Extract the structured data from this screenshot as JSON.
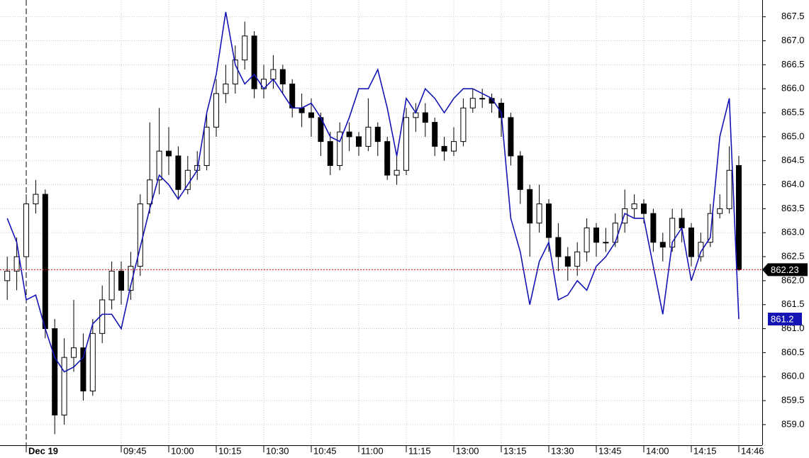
{
  "chart_data": {
    "type": "candlestick",
    "categories": [
      null,
      null,
      "Dec 19",
      null,
      null,
      null,
      null,
      null,
      null,
      null,
      null,
      null,
      "09:45",
      null,
      null,
      null,
      null,
      "10:00",
      null,
      null,
      null,
      null,
      "10:15",
      null,
      null,
      null,
      null,
      "10:30",
      null,
      null,
      null,
      null,
      "10:45",
      null,
      null,
      null,
      null,
      "11:00",
      null,
      null,
      null,
      null,
      "11:15",
      null,
      null,
      null,
      null,
      "13:00",
      null,
      null,
      null,
      null,
      "13:15",
      null,
      null,
      null,
      null,
      "13:30",
      null,
      null,
      null,
      null,
      "13:45",
      null,
      null,
      null,
      null,
      "14:00",
      null,
      null,
      null,
      null,
      "14:15",
      null,
      null,
      null,
      null,
      "14:46"
    ],
    "ohlc": {
      "open": [
        862.0,
        862.2,
        862.5,
        863.6,
        863.8,
        861.0,
        859.2,
        860.4,
        860.6,
        859.7,
        860.9,
        861.6,
        862.2,
        861.8,
        862.3,
        863.6,
        864.1,
        864.7,
        864.6,
        863.9,
        864.3,
        864.4,
        865.2,
        865.9,
        866.1,
        866.6,
        867.1,
        866.0,
        866.2,
        866.4,
        866.1,
        865.6,
        865.5,
        865.4,
        864.9,
        864.4,
        865.1,
        865.0,
        864.8,
        865.2,
        864.9,
        864.2,
        864.3,
        865.4,
        865.5,
        865.3,
        864.8,
        864.7,
        864.9,
        865.6,
        865.8,
        865.8,
        865.7,
        865.4,
        864.6,
        863.9,
        863.2,
        863.6,
        862.9,
        862.5,
        862.3,
        862.6,
        863.1,
        862.8,
        862.8,
        863.2,
        863.5,
        863.6,
        863.4,
        862.8,
        862.7,
        863.3,
        863.1,
        862.5,
        862.8,
        863.4,
        863.5,
        864.4
      ],
      "high": [
        862.5,
        862.9,
        863.8,
        864.1,
        863.9,
        861.2,
        860.8,
        861.6,
        860.9,
        861.2,
        861.9,
        862.4,
        862.4,
        862.6,
        863.8,
        865.3,
        865.6,
        865.2,
        864.8,
        864.6,
        864.7,
        865.5,
        866.2,
        866.5,
        866.9,
        867.4,
        867.2,
        866.5,
        866.7,
        866.5,
        866.2,
        865.9,
        865.8,
        865.5,
        865.1,
        865.3,
        865.3,
        865.1,
        865.8,
        865.3,
        865.0,
        864.6,
        865.6,
        865.7,
        865.7,
        865.4,
        865.0,
        865.2,
        865.8,
        866.0,
        866.0,
        865.9,
        865.8,
        865.5,
        864.7,
        864.0,
        864.0,
        863.7,
        863.2,
        862.7,
        862.8,
        863.3,
        863.2,
        863.1,
        863.4,
        863.9,
        863.8,
        863.7,
        863.5,
        863.0,
        863.5,
        863.5,
        863.2,
        863.0,
        863.6,
        863.8,
        864.8,
        864.6
      ],
      "low": [
        861.6,
        861.8,
        862.3,
        863.4,
        860.8,
        858.8,
        859.0,
        860.1,
        859.5,
        859.6,
        860.7,
        861.4,
        861.5,
        861.6,
        862.1,
        863.4,
        863.8,
        864.2,
        863.7,
        863.8,
        864.1,
        864.3,
        865.0,
        865.7,
        865.9,
        866.4,
        865.8,
        865.8,
        866.0,
        865.9,
        865.4,
        865.2,
        865.0,
        864.6,
        864.2,
        864.3,
        864.7,
        864.6,
        864.7,
        864.6,
        864.1,
        864.0,
        864.2,
        865.1,
        865.0,
        864.6,
        864.5,
        864.6,
        864.8,
        865.5,
        865.6,
        865.5,
        865.0,
        864.4,
        863.6,
        862.5,
        863.0,
        862.6,
        862.2,
        862.0,
        862.1,
        862.4,
        862.5,
        862.6,
        862.7,
        863.0,
        863.3,
        863.2,
        862.6,
        862.4,
        862.6,
        862.8,
        862.3,
        862.4,
        862.7,
        863.3,
        863.4,
        862.2
      ],
      "close": [
        862.2,
        862.5,
        863.6,
        863.8,
        861.0,
        859.2,
        860.4,
        860.6,
        859.7,
        860.9,
        861.6,
        862.2,
        861.8,
        862.3,
        863.6,
        864.1,
        864.7,
        864.6,
        863.9,
        864.3,
        864.4,
        865.2,
        865.9,
        866.1,
        866.6,
        867.1,
        866.0,
        866.2,
        866.4,
        866.1,
        865.6,
        865.5,
        865.4,
        864.9,
        864.4,
        865.1,
        865.0,
        864.8,
        865.2,
        864.9,
        864.2,
        864.3,
        865.4,
        865.5,
        865.3,
        864.8,
        864.7,
        864.9,
        865.6,
        865.8,
        865.8,
        865.7,
        865.4,
        864.6,
        863.9,
        863.2,
        863.6,
        862.9,
        862.5,
        862.3,
        862.6,
        863.1,
        862.8,
        862.8,
        863.2,
        863.5,
        863.6,
        863.4,
        862.8,
        862.7,
        863.3,
        863.1,
        862.5,
        862.8,
        863.4,
        863.5,
        864.3,
        862.23
      ],
      "color": "#000000"
    },
    "line": {
      "color": "#1414b4",
      "values": [
        863.3,
        862.8,
        861.6,
        861.7,
        861.0,
        860.4,
        860.1,
        860.2,
        860.4,
        861.1,
        861.3,
        861.3,
        861.0,
        861.9,
        862.7,
        863.5,
        864.2,
        864.0,
        863.7,
        864.0,
        864.3,
        865.5,
        866.3,
        867.6,
        866.5,
        866.1,
        866.3,
        866.0,
        866.2,
        865.9,
        865.6,
        865.6,
        865.7,
        865.4,
        865.0,
        864.9,
        865.4,
        866.0,
        866.0,
        866.4,
        865.6,
        864.6,
        865.8,
        865.5,
        866.0,
        865.8,
        865.5,
        865.8,
        866.0,
        866.0,
        865.9,
        865.8,
        865.5,
        863.3,
        862.6,
        861.5,
        862.4,
        862.8,
        861.6,
        861.7,
        862.0,
        861.8,
        862.3,
        862.5,
        862.8,
        863.4,
        863.3,
        863.3,
        862.3,
        861.3,
        862.8,
        863.1,
        862.0,
        862.6,
        862.9,
        865.0,
        865.8,
        861.2
      ]
    },
    "last_price_color": "#cc0000",
    "ylim": [
      858.57,
      867.85
    ],
    "yticks": [
      {
        "value": 859,
        "label": "859.0"
      },
      859.5,
      {
        "value": 860,
        "label": "860.0"
      },
      860.5,
      {
        "value": 861,
        "label": "861.0"
      },
      861.5,
      {
        "value": 862,
        "label": "862.0"
      },
      862.5,
      {
        "value": 863,
        "label": "863.0"
      },
      863.5,
      {
        "value": 864,
        "label": "864.0"
      },
      864.5,
      {
        "value": 865,
        "label": "865.0"
      },
      865.5,
      {
        "value": 866,
        "label": "866.0"
      },
      866.5,
      {
        "value": 867,
        "label": "867.0"
      },
      867.5
    ],
    "grid": true
  }
}
